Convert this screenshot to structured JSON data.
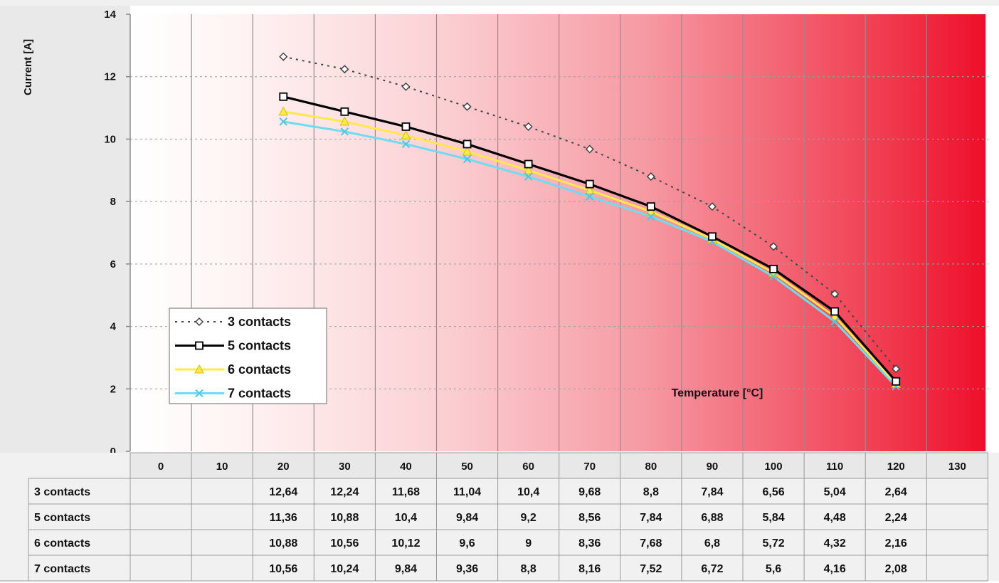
{
  "chart_data": {
    "type": "line",
    "ylabel": "Current [A]",
    "xlabel": "Temperature [°C]",
    "ylim": [
      0,
      14
    ],
    "yticks": [
      0,
      2,
      4,
      6,
      8,
      10,
      12,
      14
    ],
    "categories": [
      "0",
      "10",
      "20",
      "30",
      "40",
      "50",
      "60",
      "70",
      "80",
      "90",
      "100",
      "110",
      "120",
      "130"
    ],
    "x": [
      0,
      10,
      20,
      30,
      40,
      50,
      60,
      70,
      80,
      90,
      100,
      110,
      120,
      130
    ],
    "grid": true,
    "legend_position": "lower-left",
    "background": "white-to-red gradient",
    "series": [
      {
        "name": "3 contacts",
        "color": "#444444",
        "style": "dotted",
        "marker": "diamond",
        "values": [
          null,
          null,
          12.64,
          12.24,
          11.68,
          11.04,
          10.4,
          9.68,
          8.8,
          7.84,
          6.56,
          5.04,
          2.64,
          null
        ],
        "table_values": [
          "",
          "",
          "12,64",
          "12,24",
          "11,68",
          "11,04",
          "10,4",
          "9,68",
          "8,8",
          "7,84",
          "6,56",
          "5,04",
          "2,64",
          ""
        ]
      },
      {
        "name": "5 contacts",
        "color": "#000000",
        "style": "solid",
        "marker": "square",
        "values": [
          null,
          null,
          11.36,
          10.88,
          10.4,
          9.84,
          9.2,
          8.56,
          7.84,
          6.88,
          5.84,
          4.48,
          2.24,
          null
        ],
        "table_values": [
          "",
          "",
          "11,36",
          "10,88",
          "10,4",
          "9,84",
          "9,2",
          "8,56",
          "7,84",
          "6,88",
          "5,84",
          "4,48",
          "2,24",
          ""
        ]
      },
      {
        "name": "6 contacts",
        "color": "#ffe84a",
        "style": "solid",
        "marker": "triangle",
        "values": [
          null,
          null,
          10.88,
          10.56,
          10.12,
          9.6,
          9.0,
          8.36,
          7.68,
          6.8,
          5.72,
          4.32,
          2.16,
          null
        ],
        "table_values": [
          "",
          "",
          "10,88",
          "10,56",
          "10,12",
          "9,6",
          "9",
          "8,36",
          "7,68",
          "6,8",
          "5,72",
          "4,32",
          "2,16",
          ""
        ]
      },
      {
        "name": "7 contacts",
        "color": "#6fdcf0",
        "style": "solid",
        "marker": "x",
        "values": [
          null,
          null,
          10.56,
          10.24,
          9.84,
          9.36,
          8.8,
          8.16,
          7.52,
          6.72,
          5.6,
          4.16,
          2.08,
          null
        ],
        "table_values": [
          "",
          "",
          "10,56",
          "10,24",
          "9,84",
          "9,36",
          "8,8",
          "8,16",
          "7,52",
          "6,72",
          "5,6",
          "4,16",
          "2,08",
          ""
        ]
      }
    ]
  }
}
